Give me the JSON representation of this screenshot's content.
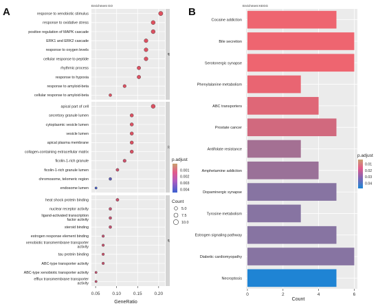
{
  "chart_data": [
    {
      "type": "scatter",
      "panel_letter": "A",
      "title": "Enrichment GO",
      "xlabel": "GeneRatio",
      "xlim": [
        0.04,
        0.215
      ],
      "xticks": [
        0.05,
        0.1,
        0.15,
        0.2
      ],
      "xtick_labels": [
        "0.05",
        "0.10",
        "0.15",
        "0.20"
      ],
      "grid": true,
      "facets": [
        {
          "strip": "BP",
          "terms": [
            {
              "term": "response to xenobiotic stimulus",
              "gene_ratio": 0.205,
              "p_adjust": 0.0002
            },
            {
              "term": "response to oxidative stress",
              "gene_ratio": 0.187,
              "p_adjust": 0.0002
            },
            {
              "term": "positive regulation of MAPK cascade",
              "gene_ratio": 0.187,
              "p_adjust": 0.0003
            },
            {
              "term": "ERK1 and ERK2 cascade",
              "gene_ratio": 0.17,
              "p_adjust": 0.0003
            },
            {
              "term": "response to oxygen levels",
              "gene_ratio": 0.17,
              "p_adjust": 0.0003
            },
            {
              "term": "cellular response to peptide",
              "gene_ratio": 0.17,
              "p_adjust": 0.0003
            },
            {
              "term": "rhythmic process",
              "gene_ratio": 0.153,
              "p_adjust": 0.0003
            },
            {
              "term": "response to hypoxia",
              "gene_ratio": 0.153,
              "p_adjust": 0.0003
            },
            {
              "term": "response to amyloid-beta",
              "gene_ratio": 0.119,
              "p_adjust": 0.0003
            },
            {
              "term": "cellular response to amyloid-beta",
              "gene_ratio": 0.085,
              "p_adjust": 0.0003
            }
          ]
        },
        {
          "strip": "CC",
          "terms": [
            {
              "term": "apical part of cell",
              "gene_ratio": 0.187,
              "p_adjust": 0.0003
            },
            {
              "term": "secretory granule lumen",
              "gene_ratio": 0.136,
              "p_adjust": 0.0003
            },
            {
              "term": "cytoplasmic vesicle lumen",
              "gene_ratio": 0.136,
              "p_adjust": 0.0003
            },
            {
              "term": "vesicle lumen",
              "gene_ratio": 0.136,
              "p_adjust": 0.0003
            },
            {
              "term": "apical plasma membrane",
              "gene_ratio": 0.136,
              "p_adjust": 0.0003
            },
            {
              "term": "collagen-containing extracellular matrix",
              "gene_ratio": 0.136,
              "p_adjust": 0.0004
            },
            {
              "term": "ficolin-1-rich granule",
              "gene_ratio": 0.119,
              "p_adjust": 0.0007
            },
            {
              "term": "ficolin-1-rich granule lumen",
              "gene_ratio": 0.102,
              "p_adjust": 0.0008
            },
            {
              "term": "chromosome, telomeric region",
              "gene_ratio": 0.085,
              "p_adjust": 0.0036
            },
            {
              "term": "endosome lumen",
              "gene_ratio": 0.051,
              "p_adjust": 0.0042
            }
          ]
        },
        {
          "strip": "MF",
          "terms": [
            {
              "term": "heat shock protein binding",
              "gene_ratio": 0.102,
              "p_adjust": 0.0008
            },
            {
              "term": "nuclear receptor activity",
              "gene_ratio": 0.085,
              "p_adjust": 0.0009
            },
            {
              "term": "ligand-activated transcription factor activity",
              "gene_ratio": 0.085,
              "p_adjust": 0.0009
            },
            {
              "term": "steroid binding",
              "gene_ratio": 0.085,
              "p_adjust": 0.0009
            },
            {
              "term": "estrogen response element binding",
              "gene_ratio": 0.068,
              "p_adjust": 0.0009
            },
            {
              "term": "xenobiotic transmembrane transporter activity",
              "gene_ratio": 0.068,
              "p_adjust": 0.0008
            },
            {
              "term": "tau protein binding",
              "gene_ratio": 0.068,
              "p_adjust": 0.0007
            },
            {
              "term": "ABC-type transporter activity",
              "gene_ratio": 0.068,
              "p_adjust": 0.0008
            },
            {
              "term": "ABC-type xenobiotic transporter activity",
              "gene_ratio": 0.051,
              "p_adjust": 0.0009
            },
            {
              "term": "efflux transmembrane transporter activity",
              "gene_ratio": 0.051,
              "p_adjust": 0.0009
            }
          ]
        }
      ],
      "legend_color": {
        "title": "p.adjust",
        "ticks": [
          0.001,
          0.002,
          0.003,
          0.004
        ],
        "tick_labels": [
          "0.001",
          "0.002",
          "0.003",
          "0.004"
        ],
        "range": [
          0.0,
          0.0045
        ],
        "low_color": "#e8505a",
        "high_color": "#3b5fd0"
      },
      "legend_size": {
        "title": "Count",
        "values": [
          5,
          7.5,
          10
        ],
        "labels": [
          "5.0",
          "7.5",
          "10.0"
        ]
      },
      "placement": {
        "legend": "right"
      }
    },
    {
      "type": "bar",
      "orientation": "horizontal",
      "panel_letter": "B",
      "title": "Enrichment KEGG",
      "xlabel": "Count",
      "xlim": [
        0,
        6.1
      ],
      "xticks": [
        0,
        2,
        4,
        6
      ],
      "xtick_labels": [
        "0",
        "2",
        "4",
        "6"
      ],
      "categories": [
        "Cocaine addiction",
        "Bile secretion",
        "Serotonergic synapse",
        "Phenylalanine metabolism",
        "ABC transporters",
        "Prostate cancer",
        "Antifolate resistance",
        "Amphetamine addiction",
        "Dopaminergic synapse",
        "Tyrosine metabolism",
        "Estrogen signaling pathway",
        "Diabetic cardiomyopathy",
        "Necroptosis"
      ],
      "values": [
        5,
        6,
        6,
        3,
        4,
        5,
        3,
        4,
        5,
        3,
        5,
        6,
        5
      ],
      "p_adjust": [
        0.005,
        0.005,
        0.005,
        0.006,
        0.008,
        0.011,
        0.02,
        0.022,
        0.026,
        0.026,
        0.026,
        0.026,
        0.047
      ],
      "legend_color": {
        "title": "p.adjust",
        "ticks": [
          0.01,
          0.02,
          0.03,
          0.04
        ],
        "tick_labels": [
          "0.01",
          "0.02",
          "0.03",
          "0.04"
        ],
        "range": [
          0.003,
          0.048
        ],
        "low_color": "#f8636b",
        "high_color": "#1a85d6"
      },
      "grid": true,
      "placement": {
        "legend": "right"
      }
    }
  ]
}
